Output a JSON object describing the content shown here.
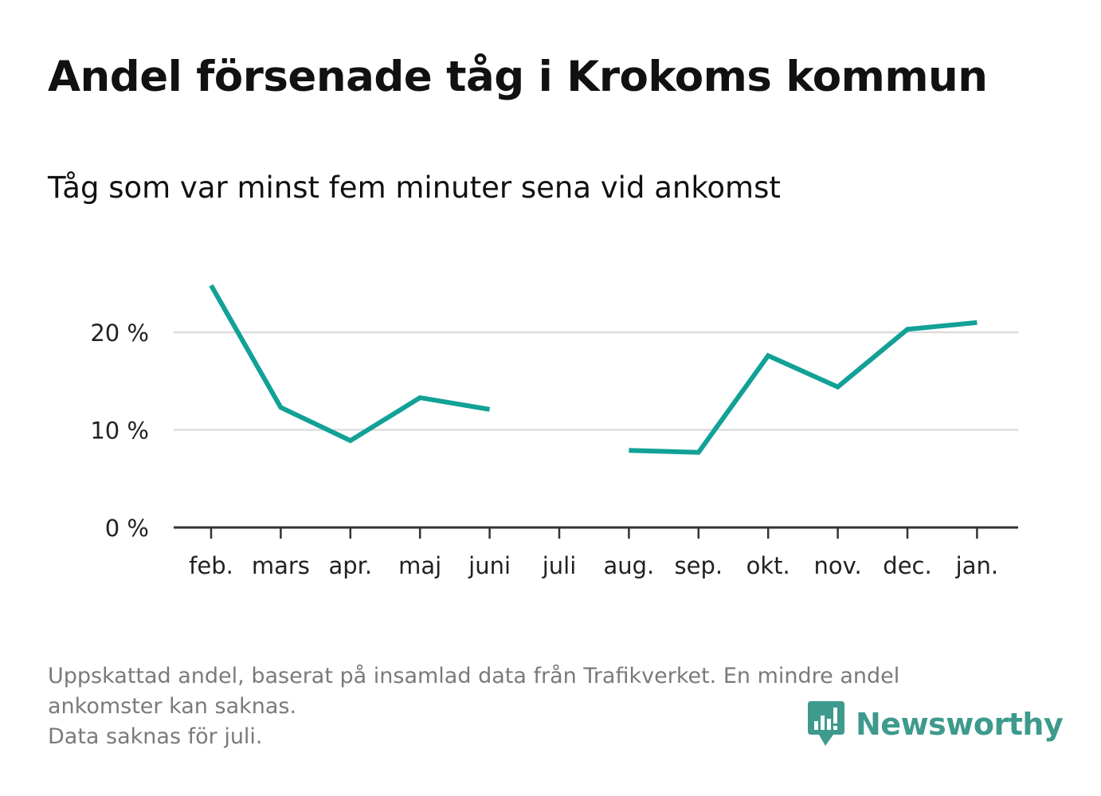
{
  "header": {
    "title": "Andel försenade tåg i Krokoms kommun",
    "subtitle": "Tåg som var minst fem minuter sena vid ankomst"
  },
  "chart_data": {
    "type": "line",
    "title": "Andel försenade tåg i Krokoms kommun",
    "subtitle": "Tåg som var minst fem minuter sena vid ankomst",
    "categories": [
      "feb.",
      "mars",
      "apr.",
      "maj",
      "juni",
      "juli",
      "aug.",
      "sep.",
      "okt.",
      "nov.",
      "dec.",
      "jan."
    ],
    "series": [
      {
        "values": [
          24.8,
          12.3,
          8.9,
          13.3,
          12.1,
          null,
          7.9,
          7.7,
          17.6,
          14.4,
          20.3,
          21.0
        ]
      }
    ],
    "ylim": [
      0,
      27
    ],
    "yticks": [
      0,
      10,
      20
    ],
    "ytick_labels": [
      "0 %",
      "10 %",
      "20 %"
    ],
    "grid": true,
    "line_color": "#12a197",
    "grid_color": "#dddddd",
    "axis_color": "#333333"
  },
  "footnote": {
    "lines": [
      "Uppskattad andel, baserat på insamlad data från Trafikverket. En mindre andel",
      "ankomster kan saknas.",
      "Data saknas för juli."
    ]
  },
  "brand": {
    "name": "Newsworthy",
    "icon": "newsworthy-logo-icon",
    "color": "#3d9a8c"
  }
}
